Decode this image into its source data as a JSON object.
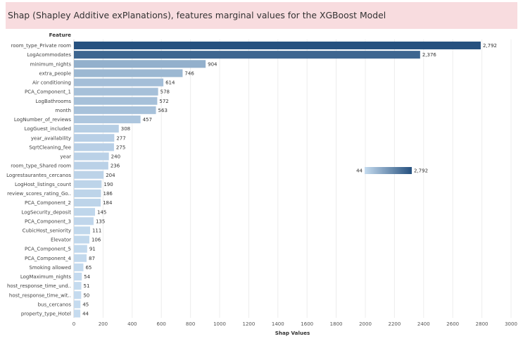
{
  "title": "Shap (Shapley Additive exPlanations), features marginal values for the XGBoost Model",
  "colors": {
    "title_background": "#f8dcdf",
    "gradient_low": "#c5dbef",
    "gradient_high": "#26517f"
  },
  "chart_data": {
    "type": "bar",
    "orientation": "horizontal",
    "ylabel": "Feature",
    "xlabel": "Shap Values",
    "xlim": [
      0,
      3000
    ],
    "x_ticks": [
      "0",
      "200",
      "400",
      "600",
      "800",
      "1000",
      "1200",
      "1400",
      "1600",
      "1800",
      "2000",
      "2200",
      "2400",
      "2600",
      "2800",
      "3000"
    ],
    "grid": true,
    "color_scale": "sequential blue by value",
    "color_legend": {
      "min_label": "44",
      "max_label": "2,792",
      "placement": "center-right"
    },
    "categories": [
      "room_type_Private room",
      "LogAcommodates",
      "minimum_nights",
      "extra_people",
      "Air conditioning",
      "PCA_Component_1",
      "LogBathrooms",
      "month",
      "LogNumber_of_reviews",
      "LogGuest_included",
      "year_availability",
      "SqrtCleaning_fee",
      "year",
      "room_type_Shared room",
      "Logrestaurantes_cercanos",
      "LogHost_listings_count",
      "review_scores_rating_Go..",
      "PCA_Component_2",
      "LogSecurity_deposit",
      "PCA_Component_3",
      "CubicHost_seniority",
      "Elevator",
      "PCA_Component_5",
      "PCA_Component_4",
      "Smoking allowed",
      "LogMaximum_nights",
      "host_response_time_und..",
      "host_response_time_wit..",
      "bus_cercanos",
      "property_type_Hotel"
    ],
    "values": [
      2792,
      2376,
      904,
      746,
      614,
      578,
      572,
      563,
      457,
      308,
      277,
      275,
      240,
      236,
      204,
      190,
      186,
      184,
      145,
      135,
      111,
      106,
      91,
      87,
      65,
      54,
      51,
      50,
      45,
      44
    ],
    "value_labels": [
      "2,792",
      "2,376",
      "904",
      "746",
      "614",
      "578",
      "572",
      "563",
      "457",
      "308",
      "277",
      "275",
      "240",
      "236",
      "204",
      "190",
      "186",
      "184",
      "145",
      "135",
      "111",
      "106",
      "91",
      "87",
      "65",
      "54",
      "51",
      "50",
      "45",
      "44"
    ]
  }
}
